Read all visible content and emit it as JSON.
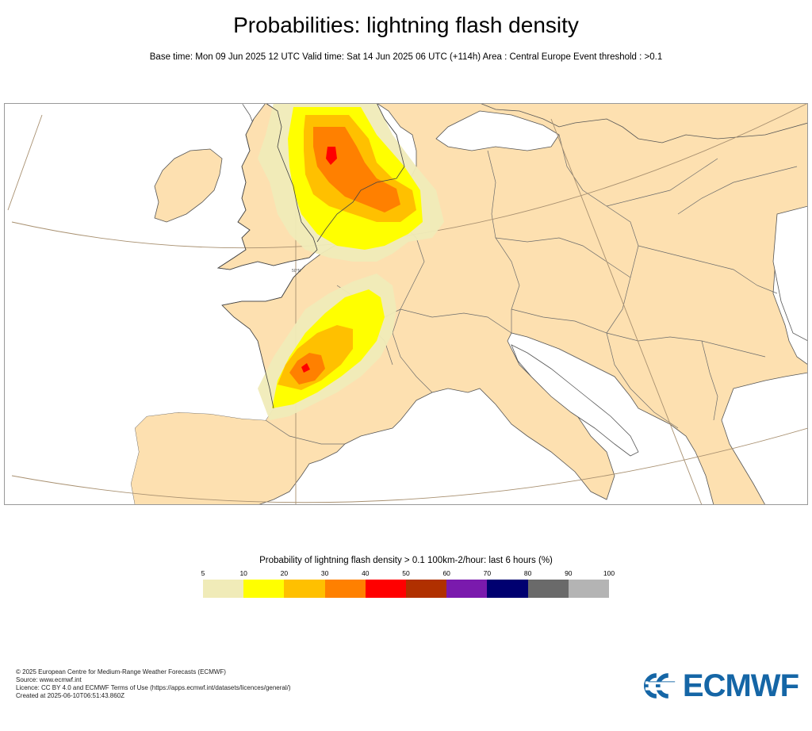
{
  "header": {
    "title": "Probabilities: lightning flash density",
    "subtitle": "Base time: Mon 09 Jun 2025 12 UTC Valid time: Sat 14 Jun 2025 06 UTC (+114h) Area : Central Europe Event threshold : >0.1"
  },
  "map": {
    "latitude_label": "50°N",
    "land_color": "#fde0b0",
    "sea_color": "#ffffff"
  },
  "legend": {
    "title": "Probability of lightning flash density > 0.1 100km-2/hour: last 6 hours (%)",
    "ticks": [
      "5",
      "10",
      "20",
      "30",
      "40",
      "50",
      "60",
      "70",
      "80",
      "90",
      "100"
    ],
    "colors": [
      "#f0ebb8",
      "#ffff00",
      "#ffc000",
      "#ff8000",
      "#ff0000",
      "#b03000",
      "#7a1aad",
      "#000070",
      "#6a6a6a",
      "#b4b4b4"
    ]
  },
  "footer": {
    "line1": "© 2025 European Centre for Medium-Range Weather Forecasts (ECMWF)",
    "line2": "Source: www.ecmwf.int",
    "line3": "Licence: CC BY 4.0 and ECMWF Terms of Use (https://apps.ecmwf.int/datasets/licences/general/)",
    "line4": "Created at 2025-06-10T06:51:43.860Z"
  },
  "logo": {
    "text": "ECMWF",
    "color": "#1566a6",
    "icon": "ecmwf-logo-icon"
  }
}
